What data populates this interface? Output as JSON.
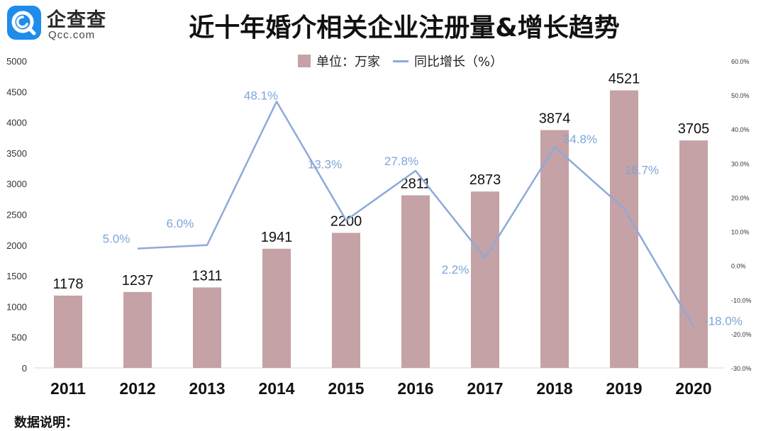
{
  "logo": {
    "icon": "qcc-logo-icon",
    "name_cn": "企查查",
    "name_en": "Qcc.com"
  },
  "footnote": "数据说明：",
  "colors": {
    "bar": "#c4a2a5",
    "line": "#8fa9d9",
    "line_label": "#7ea4da"
  },
  "chart_data": {
    "type": "bar",
    "title": "近十年婚介相关企业注册量&增长趋势",
    "categories": [
      "2011",
      "2012",
      "2013",
      "2014",
      "2015",
      "2016",
      "2017",
      "2018",
      "2019",
      "2020"
    ],
    "series": [
      {
        "name": "单位：万家",
        "type": "bar",
        "axis": "left",
        "values": [
          1178,
          1237,
          1311,
          1941,
          2200,
          2811,
          2873,
          3874,
          4521,
          3705
        ],
        "labels": [
          "1178",
          "1237",
          "1311",
          "1941",
          "2200",
          "2811",
          "2873",
          "3874",
          "4521",
          "3705"
        ]
      },
      {
        "name": "同比增长（%）",
        "type": "line",
        "axis": "right",
        "values": [
          null,
          5.0,
          6.0,
          48.1,
          13.3,
          27.8,
          2.2,
          34.8,
          16.7,
          -18.0
        ],
        "labels": [
          "",
          "5.0%",
          "6.0%",
          "48.1%",
          "13.3%",
          "27.8%",
          "2.2%",
          "34.8%",
          "16.7%",
          "-18.0%"
        ]
      }
    ],
    "y_left": {
      "lim": [
        0,
        5000
      ],
      "ticks": [
        "0",
        "500",
        "1000",
        "1500",
        "2000",
        "2500",
        "3000",
        "3500",
        "4000",
        "4500",
        "5000"
      ]
    },
    "y_right": {
      "lim": [
        -30,
        60
      ],
      "ticks": [
        "-30.0%",
        "-20.0%",
        "-10.0%",
        "0.0%",
        "10.0%",
        "20.0%",
        "30.0%",
        "40.0%",
        "50.0%",
        "60.0%"
      ]
    },
    "grid": false,
    "legend": "top"
  }
}
